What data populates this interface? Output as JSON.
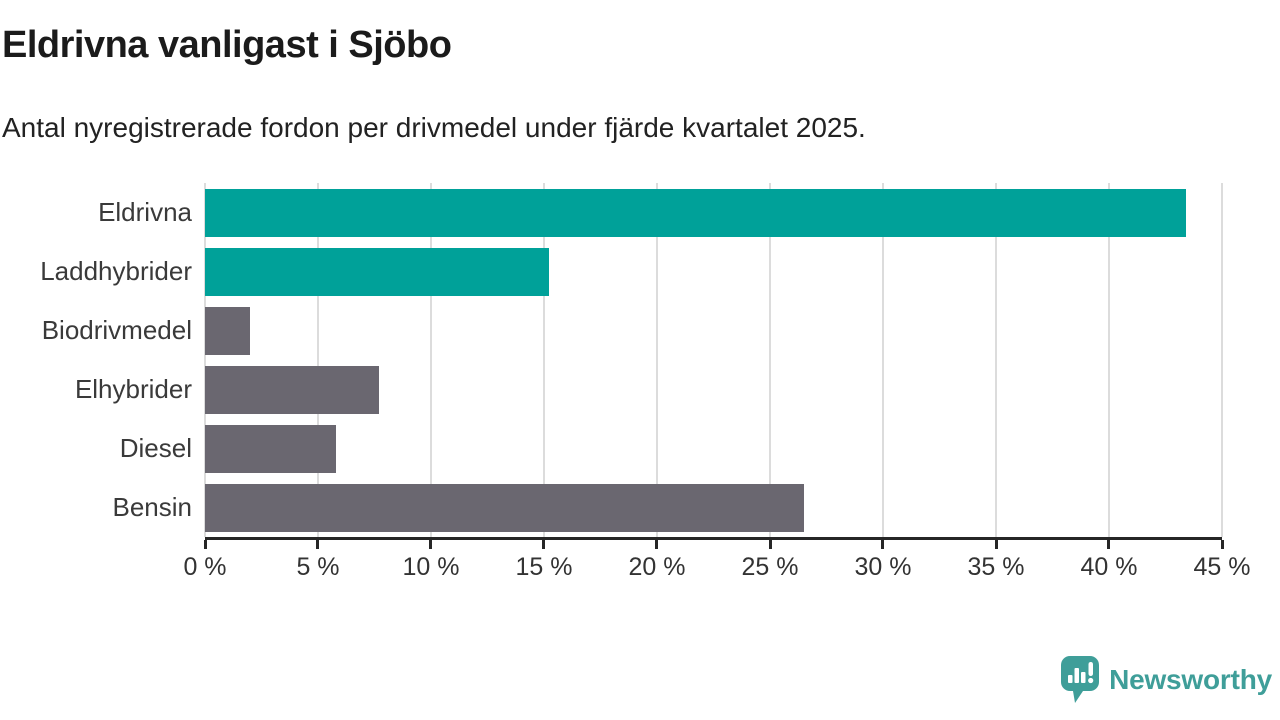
{
  "header": {
    "title": "Eldrivna vanligast i Sjöbo",
    "subtitle": "Antal nyregistrerade fordon per drivmedel under fjärde kvartalet 2025."
  },
  "chart_data": {
    "type": "bar",
    "orientation": "horizontal",
    "title": "Eldrivna vanligast i Sjöbo",
    "subtitle": "Antal nyregistrerade fordon per drivmedel under fjärde kvartalet 2025.",
    "categories": [
      "Eldrivna",
      "Laddhybrider",
      "Biodrivmedel",
      "Elhybrider",
      "Diesel",
      "Bensin"
    ],
    "values": [
      43.4,
      15.2,
      2.0,
      7.7,
      5.8,
      26.5
    ],
    "unit": "%",
    "xlim": [
      0,
      45
    ],
    "x_ticks": [
      "0 %",
      "5 %",
      "10 %",
      "15 %",
      "20 %",
      "25 %",
      "30 %",
      "35 %",
      "40 %",
      "45 %"
    ],
    "grid": "vertical",
    "legend": "none",
    "bar_colors": [
      "#00a199",
      "#00a199",
      "#6a6770",
      "#6a6770",
      "#6a6770",
      "#6a6770"
    ]
  },
  "colors": {
    "accent_teal": "#00a199",
    "bar_gray": "#6a6770",
    "axis": "#262626",
    "gridline": "#dcdcdc",
    "text_dark": "#1b1b1b",
    "logo_teal": "#3f9e99"
  },
  "footer": {
    "brand": "Newsworthy",
    "logo_icon": "bar-chart-speech-bubble-icon"
  }
}
